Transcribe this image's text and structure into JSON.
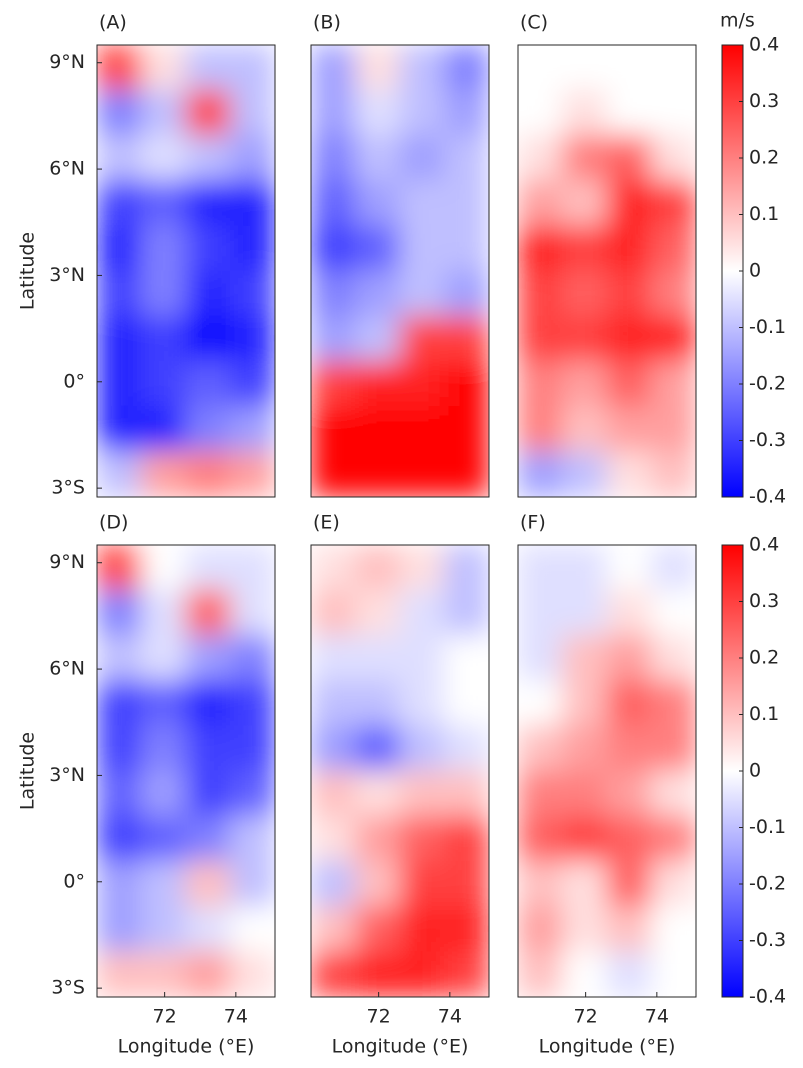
{
  "chart_data": [
    {
      "type": "heatmap",
      "label": "(A)",
      "ylabel": "Latitude",
      "xlim": [
        70.1,
        75.1
      ],
      "ylim": [
        -3.25,
        9.5
      ],
      "yticks": [
        {
          "value": 9,
          "label": "9°N"
        },
        {
          "value": 6,
          "label": "6°N"
        },
        {
          "value": 3,
          "label": "3°N"
        },
        {
          "value": 0,
          "label": "0°"
        },
        {
          "value": -3,
          "label": "3°S"
        }
      ],
      "colormap": [
        "#0000ff",
        "#ffffff",
        "#ff0000"
      ],
      "clim": [
        -0.4,
        0.4
      ],
      "grid": [
        [
          0.3,
          0.05,
          -0.1,
          -0.1
        ],
        [
          -0.2,
          -0.1,
          0.3,
          -0.1
        ],
        [
          -0.1,
          -0.05,
          -0.1,
          -0.15
        ],
        [
          -0.3,
          -0.25,
          -0.35,
          -0.35
        ],
        [
          -0.35,
          -0.2,
          -0.3,
          -0.35
        ],
        [
          -0.3,
          -0.2,
          -0.35,
          -0.3
        ],
        [
          -0.35,
          -0.3,
          -0.4,
          -0.35
        ],
        [
          -0.35,
          -0.3,
          -0.25,
          -0.3
        ],
        [
          -0.35,
          -0.35,
          -0.2,
          -0.15
        ],
        [
          -0.1,
          0.15,
          0.2,
          0.15
        ]
      ]
    },
    {
      "type": "heatmap",
      "label": "(B)",
      "xlim": [
        70.1,
        75.1
      ],
      "ylim": [
        -3.25,
        9.5
      ],
      "colormap": [
        "#0000ff",
        "#ffffff",
        "#ff0000"
      ],
      "clim": [
        -0.4,
        0.4
      ],
      "grid": [
        [
          -0.15,
          0.05,
          -0.1,
          -0.2
        ],
        [
          -0.15,
          -0.05,
          -0.1,
          -0.15
        ],
        [
          -0.2,
          -0.1,
          -0.15,
          -0.1
        ],
        [
          -0.25,
          -0.15,
          -0.1,
          -0.1
        ],
        [
          -0.3,
          -0.25,
          -0.1,
          -0.1
        ],
        [
          -0.2,
          -0.15,
          -0.1,
          -0.15
        ],
        [
          -0.15,
          -0.1,
          0.3,
          0.3
        ],
        [
          0.3,
          0.35,
          0.35,
          0.4
        ],
        [
          0.4,
          0.4,
          0.4,
          0.4
        ],
        [
          0.4,
          0.4,
          0.4,
          0.4
        ]
      ]
    },
    {
      "type": "heatmap",
      "label": "(C)",
      "xlim": [
        70.1,
        75.1
      ],
      "ylim": [
        -3.25,
        9.5
      ],
      "colormap": [
        "#0000ff",
        "#ffffff",
        "#ff0000"
      ],
      "clim": [
        -0.4,
        0.4
      ],
      "colorbar": {
        "label": "m/s",
        "ticks": [
          0.4,
          0.3,
          0.2,
          0.1,
          0,
          -0.1,
          -0.2,
          -0.3,
          -0.4
        ]
      },
      "grid": [
        [
          0,
          0,
          0,
          0
        ],
        [
          0,
          0.05,
          0,
          0
        ],
        [
          0.05,
          0.2,
          0.25,
          0.05
        ],
        [
          0.15,
          0.1,
          0.35,
          0.3
        ],
        [
          0.35,
          0.3,
          0.35,
          0.25
        ],
        [
          0.3,
          0.25,
          0.3,
          0.2
        ],
        [
          0.3,
          0.3,
          0.35,
          0.35
        ],
        [
          0.2,
          0.15,
          0.25,
          0.15
        ],
        [
          0.2,
          0.1,
          0.15,
          0.15
        ],
        [
          -0.15,
          -0.1,
          0.05,
          0.1
        ]
      ]
    },
    {
      "type": "heatmap",
      "label": "(D)",
      "ylabel": "Latitude",
      "xlabel": "Longitude (°E)",
      "xlim": [
        70.1,
        75.1
      ],
      "ylim": [
        -3.25,
        9.5
      ],
      "xticks": [
        72,
        74
      ],
      "yticks": [
        {
          "value": 9,
          "label": "9°N"
        },
        {
          "value": 6,
          "label": "6°N"
        },
        {
          "value": 3,
          "label": "3°N"
        },
        {
          "value": 0,
          "label": "0°"
        },
        {
          "value": -3,
          "label": "3°S"
        }
      ],
      "colormap": [
        "#0000ff",
        "#ffffff",
        "#ff0000"
      ],
      "clim": [
        -0.4,
        0.4
      ],
      "grid": [
        [
          0.3,
          0,
          -0.05,
          -0.05
        ],
        [
          -0.2,
          -0.05,
          0.25,
          -0.05
        ],
        [
          -0.1,
          -0.05,
          -0.15,
          -0.2
        ],
        [
          -0.3,
          -0.25,
          -0.35,
          -0.3
        ],
        [
          -0.3,
          -0.2,
          -0.3,
          -0.3
        ],
        [
          -0.25,
          -0.15,
          -0.3,
          -0.25
        ],
        [
          -0.3,
          -0.25,
          -0.2,
          -0.1
        ],
        [
          -0.15,
          -0.1,
          0.1,
          -0.1
        ],
        [
          -0.15,
          -0.1,
          -0.05,
          0
        ],
        [
          0.1,
          0.1,
          0.15,
          0.05
        ]
      ]
    },
    {
      "type": "heatmap",
      "label": "(E)",
      "xlabel": "Longitude (°E)",
      "xlim": [
        70.1,
        75.1
      ],
      "ylim": [
        -3.25,
        9.5
      ],
      "xticks": [
        72,
        74
      ],
      "colormap": [
        "#0000ff",
        "#ffffff",
        "#ff0000"
      ],
      "clim": [
        -0.4,
        0.4
      ],
      "grid": [
        [
          0.05,
          0.1,
          0.05,
          -0.1
        ],
        [
          0.1,
          0.05,
          -0.05,
          -0.1
        ],
        [
          -0.05,
          -0.05,
          -0.05,
          0
        ],
        [
          -0.1,
          -0.1,
          -0.05,
          0
        ],
        [
          -0.15,
          -0.25,
          -0.1,
          -0.05
        ],
        [
          0.1,
          0.05,
          0.1,
          0.1
        ],
        [
          0.05,
          0.15,
          0.25,
          0.3
        ],
        [
          -0.1,
          0.1,
          0.3,
          0.3
        ],
        [
          0.1,
          0.25,
          0.35,
          0.35
        ],
        [
          0.3,
          0.35,
          0.35,
          0.3
        ]
      ]
    },
    {
      "type": "heatmap",
      "label": "(F)",
      "xlabel": "Longitude (°E)",
      "xlim": [
        70.1,
        75.1
      ],
      "ylim": [
        -3.25,
        9.5
      ],
      "xticks": [
        72,
        74
      ],
      "colormap": [
        "#0000ff",
        "#ffffff",
        "#ff0000"
      ],
      "clim": [
        -0.4,
        0.4
      ],
      "colorbar": {
        "ticks": [
          0.4,
          0.3,
          0.2,
          0.1,
          0,
          -0.1,
          -0.2,
          -0.3,
          -0.4
        ]
      },
      "grid": [
        [
          -0.05,
          -0.05,
          0,
          -0.05
        ],
        [
          -0.05,
          -0.05,
          0.05,
          0
        ],
        [
          -0.05,
          0.1,
          0.15,
          0.05
        ],
        [
          0,
          0.1,
          0.25,
          0.2
        ],
        [
          0.1,
          0.15,
          0.2,
          0.2
        ],
        [
          0.2,
          0.2,
          0.15,
          0.05
        ],
        [
          0.25,
          0.3,
          0.25,
          0.2
        ],
        [
          0.1,
          0.05,
          0.25,
          0.05
        ],
        [
          0.15,
          0.05,
          0.1,
          0
        ],
        [
          0.1,
          0,
          -0.05,
          0
        ]
      ]
    }
  ]
}
